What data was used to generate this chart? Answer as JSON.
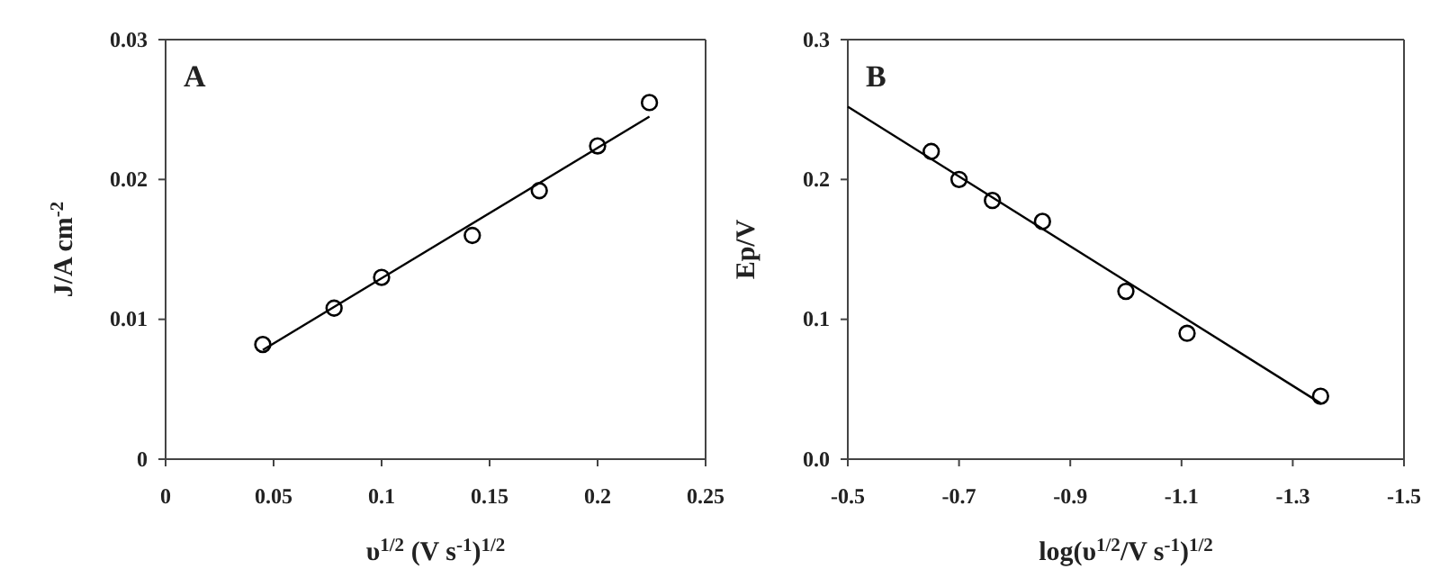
{
  "chart_data": [
    {
      "type": "scatter",
      "annotations": [
        "A"
      ],
      "xlabel": "υ$^{1/2}$ (V s$^{-1}$)$^{1/2}$",
      "ylabel": "J/A cm$^{-2}$",
      "xlim": [
        0,
        0.25
      ],
      "ylim": [
        0,
        0.03
      ],
      "xticks": [
        0,
        0.05,
        0.1,
        0.15,
        0.2,
        0.25
      ],
      "yticks": [
        0,
        0.01,
        0.02,
        0.03
      ],
      "grid": false,
      "series": [
        {
          "color": "#000000",
          "marker": "circle",
          "x": [
            0.045,
            0.078,
            0.1,
            0.142,
            0.173,
            0.2,
            0.224
          ],
          "values": [
            0.0082,
            0.0108,
            0.013,
            0.016,
            0.0192,
            0.0224,
            0.0255
          ]
        },
        {
          "type": "line",
          "color": "#000000",
          "marker": "none",
          "x": [
            0.045,
            0.224
          ],
          "values": [
            0.0078,
            0.0245
          ]
        }
      ]
    },
    {
      "type": "scatter",
      "annotations": [
        "B"
      ],
      "xlabel": "log(υ$^{1/2}$/V s$^{-1}$)$^{1/2}$",
      "ylabel": "Ep/V",
      "xlim": [
        -0.5,
        -1.5
      ],
      "ylim": [
        0,
        0.3
      ],
      "xticks": [
        -0.5,
        -0.7,
        -0.9,
        -1.1,
        -1.3,
        -1.5
      ],
      "yticks": [
        {
          "value": 0,
          "label": "0.0"
        },
        0.1,
        0.2,
        0.3
      ],
      "grid": false,
      "series": [
        {
          "color": "#000000",
          "marker": "circle",
          "x": [
            -0.65,
            -0.7,
            -0.76,
            -0.85,
            -1.0,
            -1.11,
            -1.35
          ],
          "values": [
            0.22,
            0.2,
            0.185,
            0.17,
            0.12,
            0.09,
            0.045
          ]
        },
        {
          "type": "line",
          "color": "#000000",
          "marker": "none",
          "x": [
            -0.5,
            -1.35
          ],
          "values": [
            0.252,
            0.04
          ]
        }
      ]
    }
  ]
}
